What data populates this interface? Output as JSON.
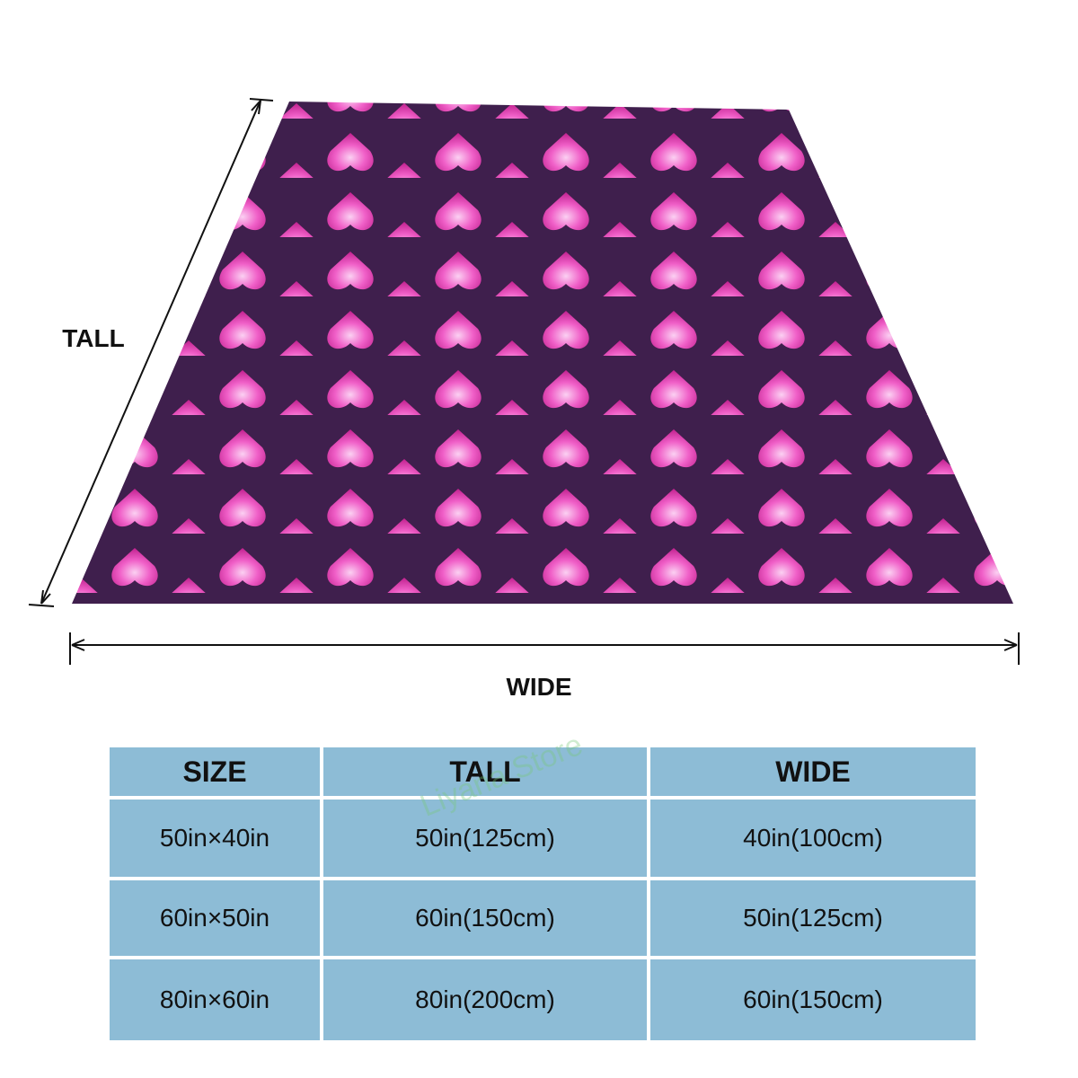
{
  "labels": {
    "tall": "TALL",
    "wide": "WIDE"
  },
  "watermark": "Liyana Store",
  "table": {
    "header": [
      "SIZE",
      "TALL",
      "WIDE"
    ],
    "rows": [
      [
        "50in×40in",
        "50in(125cm)",
        "40in(100cm)"
      ],
      [
        "60in×50in",
        "60in(150cm)",
        "50in(125cm)"
      ],
      [
        "80in×60in",
        "80in(200cm)",
        "60in(150cm)"
      ]
    ]
  }
}
